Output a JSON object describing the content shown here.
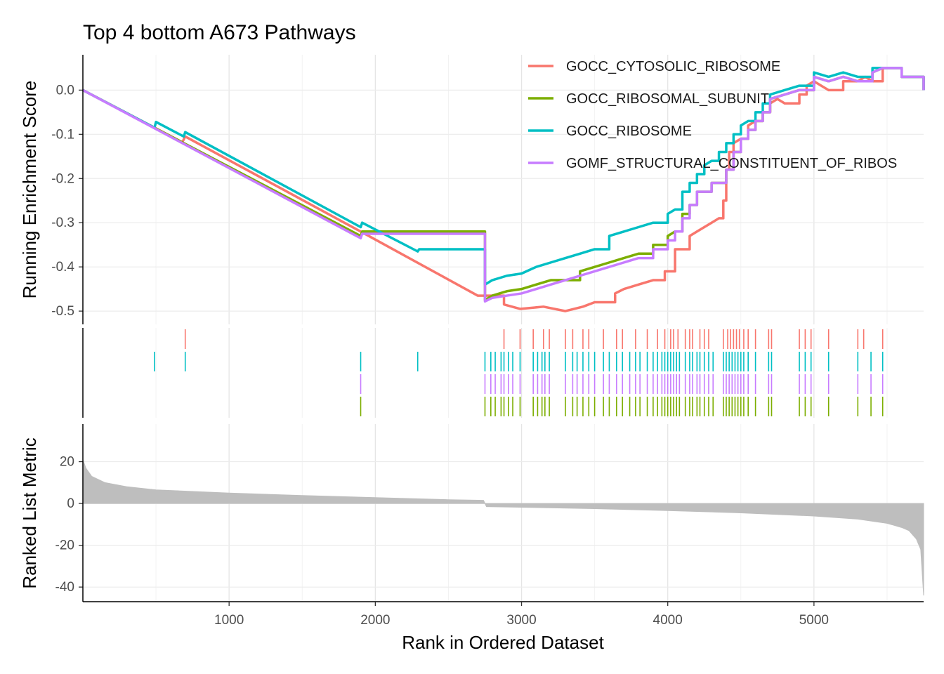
{
  "chart_data": {
    "type": "line",
    "title": "Top 4 bottom A673 Pathways",
    "xlabel": "Rank in Ordered Dataset",
    "xlim": [
      0,
      5750
    ],
    "x_ticks": [
      1000,
      2000,
      3000,
      4000,
      5000
    ],
    "x_tick_labels": [
      "1000",
      "2000",
      "3000",
      "4000",
      "5000"
    ],
    "legend_position": "top-right",
    "grid": true,
    "panels": {
      "running_score": {
        "ylabel": "Running Enrichment Score",
        "ylim": [
          -0.53,
          0.08
        ],
        "y_ticks": [
          0.0,
          -0.1,
          -0.2,
          -0.3,
          -0.4,
          -0.5
        ],
        "y_tick_labels": [
          "0.0",
          "-0.1",
          "-0.2",
          "-0.3",
          "-0.4",
          "-0.5"
        ]
      },
      "ranked_metric": {
        "ylabel": "Ranked List Metric",
        "ylim": [
          -47,
          38
        ],
        "y_ticks": [
          20,
          0,
          -20,
          -40
        ],
        "y_tick_labels": [
          "20",
          "0",
          "-20",
          "-40"
        ],
        "color": "#bebebe",
        "x": [
          0,
          20,
          60,
          150,
          300,
          500,
          1000,
          1500,
          2000,
          2500,
          2740,
          2760,
          3000,
          3500,
          4000,
          4500,
          5000,
          5300,
          5500,
          5600,
          5650,
          5700,
          5730,
          5750
        ],
        "values": [
          21,
          17,
          13,
          10,
          8,
          6.5,
          5,
          3.8,
          2.8,
          1.8,
          1.5,
          -1.5,
          -1.8,
          -2.5,
          -3.4,
          -4.5,
          -6,
          -7.5,
          -9.5,
          -11.5,
          -13,
          -17,
          -22,
          -44
        ]
      }
    },
    "series": [
      {
        "name": "GOCC_CYTOSOLIC_RIBOSOME",
        "color": "#F8766D",
        "x": [
          0,
          680,
          700,
          1900,
          2700,
          2880,
          2990,
          3150,
          3300,
          3420,
          3500,
          3560,
          3640,
          3700,
          3800,
          3900,
          3980,
          4050,
          4150,
          4200,
          4250,
          4300,
          4350,
          4380,
          4400,
          4420,
          4450,
          4500,
          4550,
          4600,
          4650,
          4700,
          4750,
          4800,
          4900,
          4950,
          5000,
          5050,
          5100,
          5200,
          5300,
          5350,
          5400,
          5470,
          5600,
          5750
        ],
        "values": [
          0.0,
          -0.118,
          -0.105,
          -0.32,
          -0.465,
          -0.485,
          -0.495,
          -0.49,
          -0.5,
          -0.49,
          -0.48,
          -0.48,
          -0.46,
          -0.45,
          -0.44,
          -0.43,
          -0.41,
          -0.36,
          -0.33,
          -0.32,
          -0.31,
          -0.3,
          -0.29,
          -0.25,
          -0.18,
          -0.14,
          -0.12,
          -0.11,
          -0.08,
          -0.07,
          -0.05,
          -0.03,
          -0.02,
          -0.03,
          -0.01,
          0.01,
          0.02,
          0.01,
          0.0,
          0.02,
          0.02,
          0.03,
          0.02,
          0.05,
          0.03,
          0.0
        ]
      },
      {
        "name": "GOCC_RIBOSOMAL_SUBUNIT",
        "color": "#7CAE00",
        "x": [
          0,
          1900,
          1910,
          2750,
          2800,
          2900,
          3000,
          3100,
          3200,
          3300,
          3400,
          3500,
          3600,
          3700,
          3800,
          3900,
          4000,
          4050,
          4100,
          4150,
          4200,
          4300,
          4400,
          4450,
          4500,
          4550,
          4600,
          4650,
          4700,
          4800,
          4900,
          5000,
          5100,
          5200,
          5300,
          5400,
          5470,
          5600,
          5750
        ],
        "values": [
          0.0,
          -0.33,
          -0.32,
          -0.475,
          -0.465,
          -0.455,
          -0.45,
          -0.44,
          -0.43,
          -0.43,
          -0.41,
          -0.4,
          -0.39,
          -0.38,
          -0.37,
          -0.35,
          -0.33,
          -0.32,
          -0.28,
          -0.26,
          -0.23,
          -0.21,
          -0.18,
          -0.14,
          -0.11,
          -0.09,
          -0.07,
          -0.05,
          -0.02,
          -0.01,
          0.0,
          0.03,
          0.02,
          0.03,
          0.02,
          0.04,
          0.05,
          0.03,
          0.0
        ]
      },
      {
        "name": "GOCC_RIBOSOME",
        "color": "#00BFC4",
        "x": [
          0,
          490,
          500,
          690,
          700,
          1900,
          1910,
          2290,
          2300,
          2750,
          2800,
          2900,
          3000,
          3100,
          3200,
          3300,
          3400,
          3500,
          3600,
          3700,
          3800,
          3900,
          4000,
          4050,
          4100,
          4150,
          4200,
          4250,
          4300,
          4350,
          4400,
          4450,
          4500,
          4550,
          4600,
          4650,
          4700,
          4800,
          4900,
          5000,
          5100,
          5200,
          5300,
          5400,
          5470,
          5600,
          5750
        ],
        "values": [
          0.0,
          -0.085,
          -0.072,
          -0.105,
          -0.095,
          -0.31,
          -0.3,
          -0.365,
          -0.36,
          -0.44,
          -0.43,
          -0.42,
          -0.415,
          -0.4,
          -0.39,
          -0.38,
          -0.37,
          -0.36,
          -0.33,
          -0.32,
          -0.31,
          -0.3,
          -0.28,
          -0.27,
          -0.23,
          -0.21,
          -0.19,
          -0.17,
          -0.16,
          -0.14,
          -0.12,
          -0.1,
          -0.08,
          -0.07,
          -0.05,
          -0.03,
          -0.01,
          0.0,
          0.01,
          0.04,
          0.03,
          0.04,
          0.03,
          0.05,
          0.05,
          0.03,
          0.0
        ]
      },
      {
        "name": "GOMF_STRUCTURAL_CONSTITUENT_OF_RIBOS",
        "color": "#C77CFF",
        "x": [
          0,
          1900,
          1910,
          2750,
          2800,
          2900,
          3000,
          3100,
          3200,
          3300,
          3400,
          3500,
          3600,
          3700,
          3800,
          3900,
          4000,
          4050,
          4100,
          4150,
          4200,
          4300,
          4400,
          4450,
          4500,
          4550,
          4600,
          4650,
          4700,
          4800,
          4900,
          5000,
          5100,
          5200,
          5300,
          5400,
          5470,
          5600,
          5750
        ],
        "values": [
          0.0,
          -0.335,
          -0.325,
          -0.478,
          -0.47,
          -0.465,
          -0.46,
          -0.45,
          -0.44,
          -0.43,
          -0.42,
          -0.41,
          -0.4,
          -0.39,
          -0.38,
          -0.36,
          -0.34,
          -0.32,
          -0.29,
          -0.26,
          -0.23,
          -0.21,
          -0.18,
          -0.14,
          -0.11,
          -0.09,
          -0.07,
          -0.05,
          -0.02,
          -0.01,
          0.0,
          0.03,
          0.02,
          0.03,
          0.02,
          0.04,
          0.05,
          0.03,
          0.0
        ]
      }
    ],
    "gene_hits": [
      {
        "series": "GOCC_CYTOSOLIC_RIBOSOME",
        "positions": [
          700,
          2880,
          2990,
          3080,
          3150,
          3190,
          3300,
          3350,
          3420,
          3460,
          3560,
          3650,
          3690,
          3780,
          3860,
          3930,
          3980,
          4020,
          4040,
          4070,
          4120,
          4150,
          4170,
          4220,
          4250,
          4280,
          4380,
          4410,
          4430,
          4450,
          4470,
          4490,
          4520,
          4550,
          4600,
          4690,
          4710,
          4900,
          4940,
          4980,
          5100,
          5300,
          5340,
          5470
        ]
      },
      {
        "series": "GOCC_RIBOSOME",
        "positions": [
          490,
          700,
          1900,
          2290,
          2750,
          2790,
          2820,
          2860,
          2880,
          2910,
          2940,
          2990,
          3080,
          3110,
          3140,
          3160,
          3190,
          3300,
          3350,
          3380,
          3420,
          3460,
          3500,
          3560,
          3600,
          3650,
          3690,
          3740,
          3780,
          3810,
          3860,
          3900,
          3930,
          3960,
          3980,
          4000,
          4020,
          4040,
          4060,
          4080,
          4120,
          4150,
          4170,
          4200,
          4220,
          4250,
          4280,
          4310,
          4380,
          4400,
          4420,
          4440,
          4460,
          4480,
          4500,
          4520,
          4550,
          4600,
          4690,
          4710,
          4900,
          4940,
          4980,
          5100,
          5300,
          5390,
          5470
        ]
      },
      {
        "series": "GOMF_STRUCTURAL_CONSTITUENT_OF_RIBOS",
        "positions": [
          1900,
          2750,
          2790,
          2820,
          2860,
          2880,
          2910,
          2940,
          2990,
          3080,
          3110,
          3140,
          3160,
          3190,
          3300,
          3350,
          3380,
          3420,
          3460,
          3500,
          3560,
          3600,
          3650,
          3690,
          3740,
          3780,
          3810,
          3860,
          3900,
          3930,
          3960,
          3980,
          4000,
          4020,
          4040,
          4060,
          4080,
          4120,
          4150,
          4170,
          4200,
          4220,
          4250,
          4280,
          4310,
          4380,
          4400,
          4420,
          4440,
          4460,
          4480,
          4500,
          4520,
          4550,
          4600,
          4690,
          4710,
          4900,
          4940,
          4980,
          5100,
          5300,
          5390,
          5470
        ]
      },
      {
        "series": "GOCC_RIBOSOMAL_SUBUNIT",
        "positions": [
          1900,
          2750,
          2790,
          2820,
          2860,
          2880,
          2910,
          2940,
          2990,
          3080,
          3110,
          3140,
          3160,
          3190,
          3300,
          3350,
          3380,
          3420,
          3460,
          3500,
          3560,
          3600,
          3650,
          3690,
          3740,
          3780,
          3810,
          3860,
          3900,
          3930,
          3960,
          3980,
          4000,
          4020,
          4040,
          4060,
          4080,
          4120,
          4150,
          4170,
          4200,
          4220,
          4250,
          4280,
          4310,
          4380,
          4400,
          4420,
          4440,
          4460,
          4480,
          4500,
          4520,
          4550,
          4600,
          4690,
          4710,
          4900,
          4940,
          4980,
          5100,
          5300,
          5390,
          5470
        ]
      }
    ]
  }
}
